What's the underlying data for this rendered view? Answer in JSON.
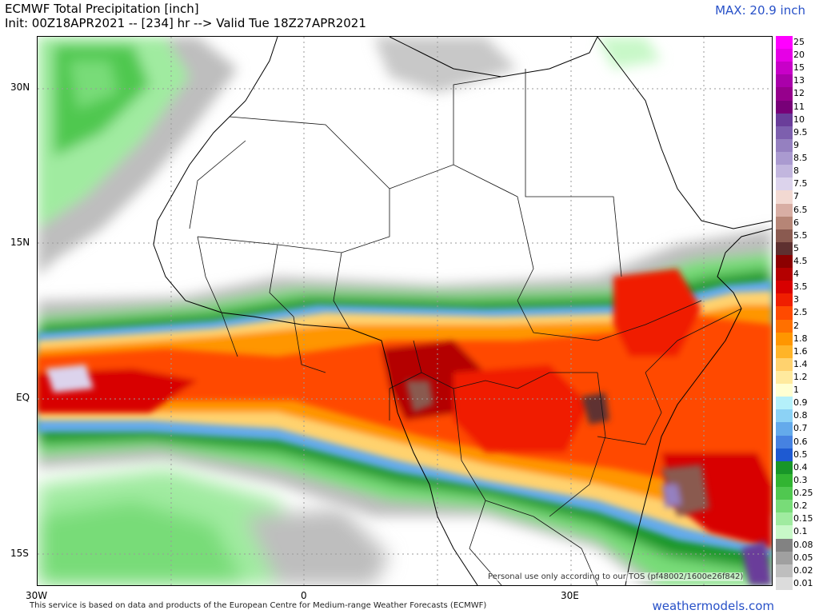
{
  "header": {
    "title": "ECMWF Total Precipitation [inch]",
    "subtitle": "Init: 00Z18APR2021 -- [234] hr --> Valid Tue 18Z27APR2021",
    "max_label": "MAX: 20.9 inch"
  },
  "map": {
    "lat_labels": [
      "30N",
      "15N",
      "EQ",
      "15S"
    ],
    "lon_labels": [
      "30W",
      "0",
      "30E"
    ],
    "tos_notice": "Personal use only according to our TOS (pf48002/1600e26f842)",
    "icons": [
      "africa-coastline-icon",
      "country-borders-icon"
    ]
  },
  "legend": {
    "items": [
      {
        "label": "25",
        "color": "#ff00ff"
      },
      {
        "label": "20",
        "color": "#e600e6"
      },
      {
        "label": "15",
        "color": "#c800c8"
      },
      {
        "label": "13",
        "color": "#aa00aa"
      },
      {
        "label": "12",
        "color": "#96008c"
      },
      {
        "label": "11",
        "color": "#780078"
      },
      {
        "label": "10",
        "color": "#6a3d9a"
      },
      {
        "label": "9.5",
        "color": "#7d5fae"
      },
      {
        "label": "9",
        "color": "#9580c0"
      },
      {
        "label": "8.5",
        "color": "#aa9ad0"
      },
      {
        "label": "8",
        "color": "#c2b6de"
      },
      {
        "label": "7.5",
        "color": "#dcd3ec"
      },
      {
        "label": "7",
        "color": "#f2d9d2"
      },
      {
        "label": "6.5",
        "color": "#d8aea4"
      },
      {
        "label": "6",
        "color": "#b68576"
      },
      {
        "label": "5.5",
        "color": "#8a5a50"
      },
      {
        "label": "5",
        "color": "#5e3030"
      },
      {
        "label": "4.5",
        "color": "#8c0000"
      },
      {
        "label": "4",
        "color": "#b40000"
      },
      {
        "label": "3.5",
        "color": "#d80000"
      },
      {
        "label": "3",
        "color": "#f01e00"
      },
      {
        "label": "2.5",
        "color": "#ff4a00"
      },
      {
        "label": "2",
        "color": "#ff7000"
      },
      {
        "label": "1.8",
        "color": "#ff9600"
      },
      {
        "label": "1.6",
        "color": "#ffb428"
      },
      {
        "label": "1.4",
        "color": "#ffd26e"
      },
      {
        "label": "1.2",
        "color": "#ffea9e"
      },
      {
        "label": "1",
        "color": "#ffffd2"
      },
      {
        "label": "0.9",
        "color": "#b4f0fa"
      },
      {
        "label": "0.8",
        "color": "#8cd2f5"
      },
      {
        "label": "0.7",
        "color": "#64aaeb"
      },
      {
        "label": "0.6",
        "color": "#4682e1"
      },
      {
        "label": "0.5",
        "color": "#1e5ad2"
      },
      {
        "label": "0.4",
        "color": "#189628"
      },
      {
        "label": "0.3",
        "color": "#32b432"
      },
      {
        "label": "0.25",
        "color": "#50c850"
      },
      {
        "label": "0.2",
        "color": "#78dc78"
      },
      {
        "label": "0.15",
        "color": "#a0eba0"
      },
      {
        "label": "0.1",
        "color": "#c8f8c8"
      },
      {
        "label": "0.08",
        "color": "#828282"
      },
      {
        "label": "0.05",
        "color": "#a0a0a0"
      },
      {
        "label": "0.02",
        "color": "#bebebe"
      },
      {
        "label": "0.01",
        "color": "#dcdcdc"
      }
    ]
  },
  "footer": {
    "text": "This service is based on data and products of the European Centre for Medium-range Weather Forecasts (ECMWF)",
    "brand": "weathermodels.com"
  }
}
